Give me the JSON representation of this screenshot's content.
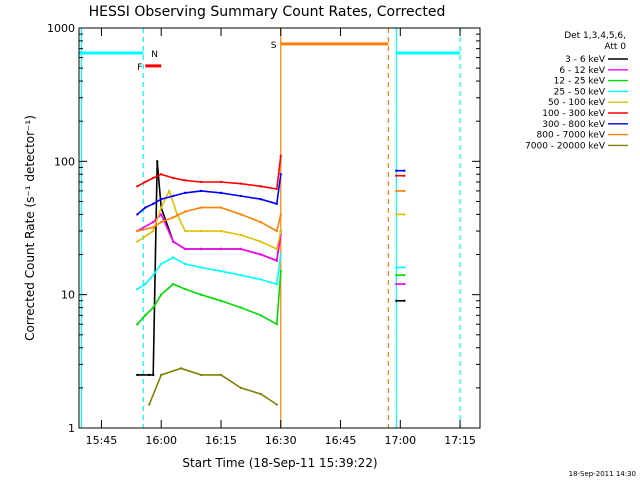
{
  "chart_data": {
    "type": "line",
    "title": "HESSI Observing Summary Count Rates, Corrected",
    "xlabel": "Start Time (18-Sep-11 15:39:22)",
    "ylabel": "Corrected Count Rate (s⁻¹ detector⁻¹)",
    "yscale": "log",
    "ylim": [
      1,
      1000
    ],
    "xlim": [
      "15:39:22",
      "17:20"
    ],
    "x_ticks": [
      "15:45",
      "16:00",
      "16:15",
      "16:30",
      "16:45",
      "17:00",
      "17:15"
    ],
    "y_ticks": [
      "1",
      "10",
      "100",
      "1000"
    ],
    "date_stamp": "18-Sep-2011 14:30",
    "legend": {
      "header": [
        "Det 1,3,4,5,6,",
        "Att 0"
      ],
      "placement": "right",
      "entries": [
        {
          "label": "3 - 6 keV",
          "color": "#000000"
        },
        {
          "label": "6 - 12 keV",
          "color": "#ff00ff"
        },
        {
          "label": "12 - 25 keV",
          "color": "#00dd00"
        },
        {
          "label": "25 - 50 keV",
          "color": "#00ffff"
        },
        {
          "label": "50 - 100 keV",
          "color": "#e0c000"
        },
        {
          "label": "100 - 300 keV",
          "color": "#ff0000"
        },
        {
          "label": "300 - 800 keV",
          "color": "#0000ff"
        },
        {
          "label": "800 - 7000 keV",
          "color": "#ff8000"
        },
        {
          "label": "7000 - 20000 keV",
          "color": "#808000"
        }
      ]
    },
    "series": [
      {
        "name": "3 - 6 keV",
        "x": [
          "15:54",
          "15:57",
          "15:58",
          "15:59",
          "16:00",
          "16:03",
          "16:06",
          "16:10",
          "16:15",
          "16:20",
          "16:25",
          "16:29",
          "16:30"
        ],
        "values": [
          2.5,
          2.5,
          2.5,
          100,
          45,
          25,
          22,
          22,
          22,
          22,
          20,
          18,
          30
        ]
      },
      {
        "name": "6 - 12 keV",
        "x": [
          "15:54",
          "15:58",
          "16:00",
          "16:03",
          "16:06",
          "16:10",
          "16:15",
          "16:20",
          "16:25",
          "16:29",
          "16:30"
        ],
        "values": [
          30,
          35,
          40,
          25,
          22,
          22,
          22,
          22,
          20,
          18,
          28
        ]
      },
      {
        "name": "12 - 25 keV",
        "x": [
          "15:54",
          "15:56",
          "15:58",
          "16:00",
          "16:03",
          "16:06",
          "16:10",
          "16:15",
          "16:20",
          "16:25",
          "16:29",
          "16:30"
        ],
        "values": [
          6,
          7,
          8,
          10,
          12,
          11,
          10,
          9,
          8,
          7,
          6,
          15
        ]
      },
      {
        "name": "25 - 50 keV",
        "x": [
          "15:54",
          "15:56",
          "15:58",
          "16:00",
          "16:03",
          "16:06",
          "16:10",
          "16:15",
          "16:20",
          "16:25",
          "16:29",
          "16:30"
        ],
        "values": [
          11,
          12,
          14,
          17,
          19,
          17,
          16,
          15,
          14,
          13,
          12,
          20
        ]
      },
      {
        "name": "50 - 100 keV",
        "x": [
          "15:54",
          "15:58",
          "16:00",
          "16:02",
          "16:04",
          "16:06",
          "16:10",
          "16:15",
          "16:20",
          "16:25",
          "16:29",
          "16:30"
        ],
        "values": [
          25,
          30,
          45,
          60,
          40,
          30,
          30,
          30,
          28,
          25,
          22,
          30
        ]
      },
      {
        "name": "100 - 300 keV",
        "x": [
          "15:54",
          "15:56",
          "15:58",
          "16:00",
          "16:03",
          "16:06",
          "16:10",
          "16:15",
          "16:20",
          "16:25",
          "16:29",
          "16:30"
        ],
        "values": [
          65,
          70,
          75,
          80,
          75,
          72,
          70,
          70,
          68,
          65,
          62,
          110
        ]
      },
      {
        "name": "300 - 800 keV",
        "x": [
          "15:54",
          "15:56",
          "15:58",
          "16:00",
          "16:03",
          "16:06",
          "16:10",
          "16:15",
          "16:20",
          "16:25",
          "16:29",
          "16:30"
        ],
        "values": [
          40,
          45,
          48,
          52,
          55,
          58,
          60,
          58,
          55,
          52,
          48,
          80
        ]
      },
      {
        "name": "800 - 7000 keV",
        "x": [
          "15:54",
          "15:58",
          "16:00",
          "16:03",
          "16:06",
          "16:10",
          "16:15",
          "16:20",
          "16:25",
          "16:29",
          "16:30"
        ],
        "values": [
          30,
          32,
          35,
          38,
          42,
          45,
          45,
          40,
          35,
          30,
          40
        ]
      },
      {
        "name": "7000 - 20000 keV",
        "x": [
          "15:57",
          "16:00",
          "16:05",
          "16:10",
          "16:15",
          "16:20",
          "16:25",
          "16:29"
        ],
        "values": [
          1.5,
          2.5,
          2.8,
          2.5,
          2.5,
          2.0,
          1.8,
          1.5
        ]
      }
    ],
    "second_segment": [
      {
        "name": "3 - 6 keV",
        "x": [
          "16:59",
          "17:01"
        ],
        "values": [
          9,
          9
        ]
      },
      {
        "name": "6 - 12 keV",
        "x": [
          "16:59",
          "17:01"
        ],
        "values": [
          12,
          12
        ]
      },
      {
        "name": "12 - 25 keV",
        "x": [
          "16:59",
          "17:01"
        ],
        "values": [
          14,
          14
        ]
      },
      {
        "name": "25 - 50 keV",
        "x": [
          "16:59",
          "17:01"
        ],
        "values": [
          16,
          16
        ]
      },
      {
        "name": "50 - 100 keV",
        "x": [
          "16:59",
          "17:01"
        ],
        "values": [
          40,
          40
        ]
      },
      {
        "name": "100 - 300 keV",
        "x": [
          "16:59",
          "17:01"
        ],
        "values": [
          78,
          78
        ]
      },
      {
        "name": "300 - 800 keV",
        "x": [
          "16:59",
          "17:01"
        ],
        "values": [
          85,
          85
        ]
      },
      {
        "name": "800 - 7000 keV",
        "x": [
          "16:59",
          "17:01"
        ],
        "values": [
          60,
          60
        ]
      }
    ],
    "flag_bars": [
      {
        "label": "",
        "color": "#00ffff",
        "x": [
          "15:39:22",
          "15:55:30"
        ],
        "y": 650
      },
      {
        "label": "N",
        "color": "#00ffff",
        "x": [
          "15:55:30",
          "15:55:30"
        ],
        "y": 650
      },
      {
        "label": "",
        "color": "#00ffff",
        "x": [
          "16:59",
          "17:15"
        ],
        "y": 650
      },
      {
        "label": "F",
        "color": "#ff0000",
        "x": [
          "15:56",
          "16:00"
        ],
        "y": 520
      },
      {
        "label": "S",
        "color": "#ff8000",
        "x": [
          "16:30",
          "16:57"
        ],
        "y": 760
      }
    ],
    "vertical_lines": [
      {
        "x": "15:40",
        "color": "#00ffff",
        "style": "solid"
      },
      {
        "x": "15:55:30",
        "color": "#00ffff",
        "style": "dashed"
      },
      {
        "x": "16:30",
        "color": "#ff8000",
        "style": "solid"
      },
      {
        "x": "16:57",
        "color": "#ff8000",
        "style": "dashed"
      },
      {
        "x": "16:59",
        "color": "#00ffff",
        "style": "solid"
      },
      {
        "x": "17:15",
        "color": "#00ffff",
        "style": "dashed"
      }
    ]
  }
}
